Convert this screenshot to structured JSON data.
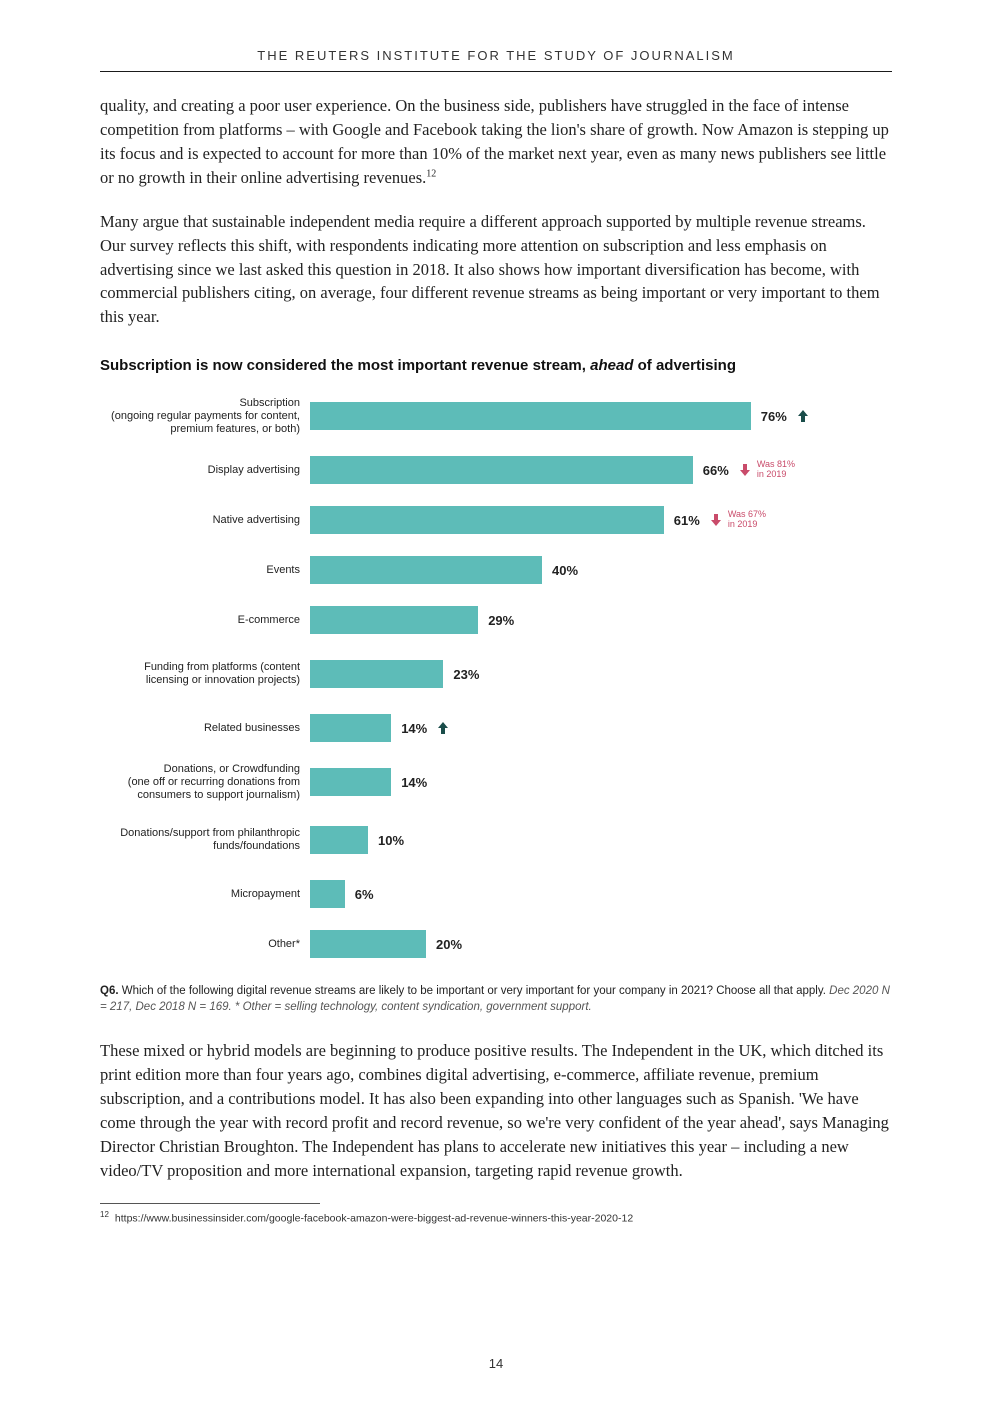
{
  "header": {
    "institute": "THE REUTERS INSTITUTE FOR THE STUDY OF JOURNALISM"
  },
  "paragraphs": {
    "p1": "quality, and creating a poor user experience. On the business side, publishers have struggled in the face of intense competition from platforms – with Google and Facebook taking the lion's share of growth. Now Amazon is stepping up its focus and is expected to account for more than 10% of the market next year, even as many news publishers see little or no growth in their online advertising revenues.",
    "p1_sup": "12",
    "p2": "Many argue that sustainable independent media require a different approach supported by multiple revenue streams. Our survey reflects this shift, with respondents indicating more attention on subscription and less emphasis on advertising since we last asked this question in 2018. It also shows how important diversification has become, with commercial publishers citing, on average, four different revenue streams as being important or very important to them this year.",
    "p3": "These mixed or hybrid models are beginning to produce positive results. The Independent in the UK, which ditched its print edition more than four years ago, combines digital advertising, e-commerce, affiliate revenue, premium subscription, and a contributions model. It has also been expanding into other languages such as Spanish. 'We have come through the year with record profit and record revenue, so we're very confident of the year ahead', says Managing Director Christian Broughton. The Independent has plans to accelerate new initiatives this year – including a new video/TV proposition and more international expansion, targeting rapid revenue growth."
  },
  "chart": {
    "title_pre": "Subscription is now considered the most important revenue stream, ",
    "title_em": "ahead",
    "title_post": " of advertising",
    "bar_color": "#5dbcb8",
    "arrow_up_color": "#1a4d4a",
    "arrow_down_color": "#c94b6a",
    "max_value": 100,
    "bars": [
      {
        "label": "Subscription\n(ongoing regular payments for content, premium features, or both)",
        "value": 76,
        "value_label": "76%",
        "arrow": "up",
        "arrow_color": "#1a4d4a",
        "badge": ""
      },
      {
        "label": "Display advertising",
        "value": 66,
        "value_label": "66%",
        "arrow": "down",
        "arrow_color": "#c94b6a",
        "badge": "Was 81% in 2019"
      },
      {
        "label": "Native advertising",
        "value": 61,
        "value_label": "61%",
        "arrow": "down",
        "arrow_color": "#c94b6a",
        "badge": "Was 67% in 2019"
      },
      {
        "label": "Events",
        "value": 40,
        "value_label": "40%",
        "arrow": "",
        "badge": ""
      },
      {
        "label": "E-commerce",
        "value": 29,
        "value_label": "29%",
        "arrow": "",
        "badge": ""
      },
      {
        "label": "Funding from platforms (content licensing or innovation projects)",
        "value": 23,
        "value_label": "23%",
        "arrow": "",
        "badge": ""
      },
      {
        "label": "Related businesses",
        "value": 14,
        "value_label": "14%",
        "arrow": "up",
        "arrow_color": "#1a4d4a",
        "badge": ""
      },
      {
        "label": "Donations, or Crowdfunding\n(one off or recurring donations from consumers to support journalism)",
        "value": 14,
        "value_label": "14%",
        "arrow": "",
        "badge": ""
      },
      {
        "label": "Donations/support from philanthropic funds/foundations",
        "value": 10,
        "value_label": "10%",
        "arrow": "",
        "badge": ""
      },
      {
        "label": "Micropayment",
        "value": 6,
        "value_label": "6%",
        "arrow": "",
        "badge": ""
      },
      {
        "label": "Other*",
        "value": 20,
        "value_label": "20%",
        "arrow": "",
        "badge": ""
      }
    ],
    "footnote_bold": "Q6.",
    "footnote_text": " Which of the following digital revenue streams are likely to be important or very important for your company in 2021? Choose all that apply. ",
    "footnote_italic": "Dec 2020 N = 217, Dec 2018 N = 169. * Other = selling technology, content syndication, government support."
  },
  "footnote": {
    "num": "12",
    "text": "https://www.businessinsider.com/google-facebook-amazon-were-biggest-ad-revenue-winners-this-year-2020-12"
  },
  "page_number": "14"
}
